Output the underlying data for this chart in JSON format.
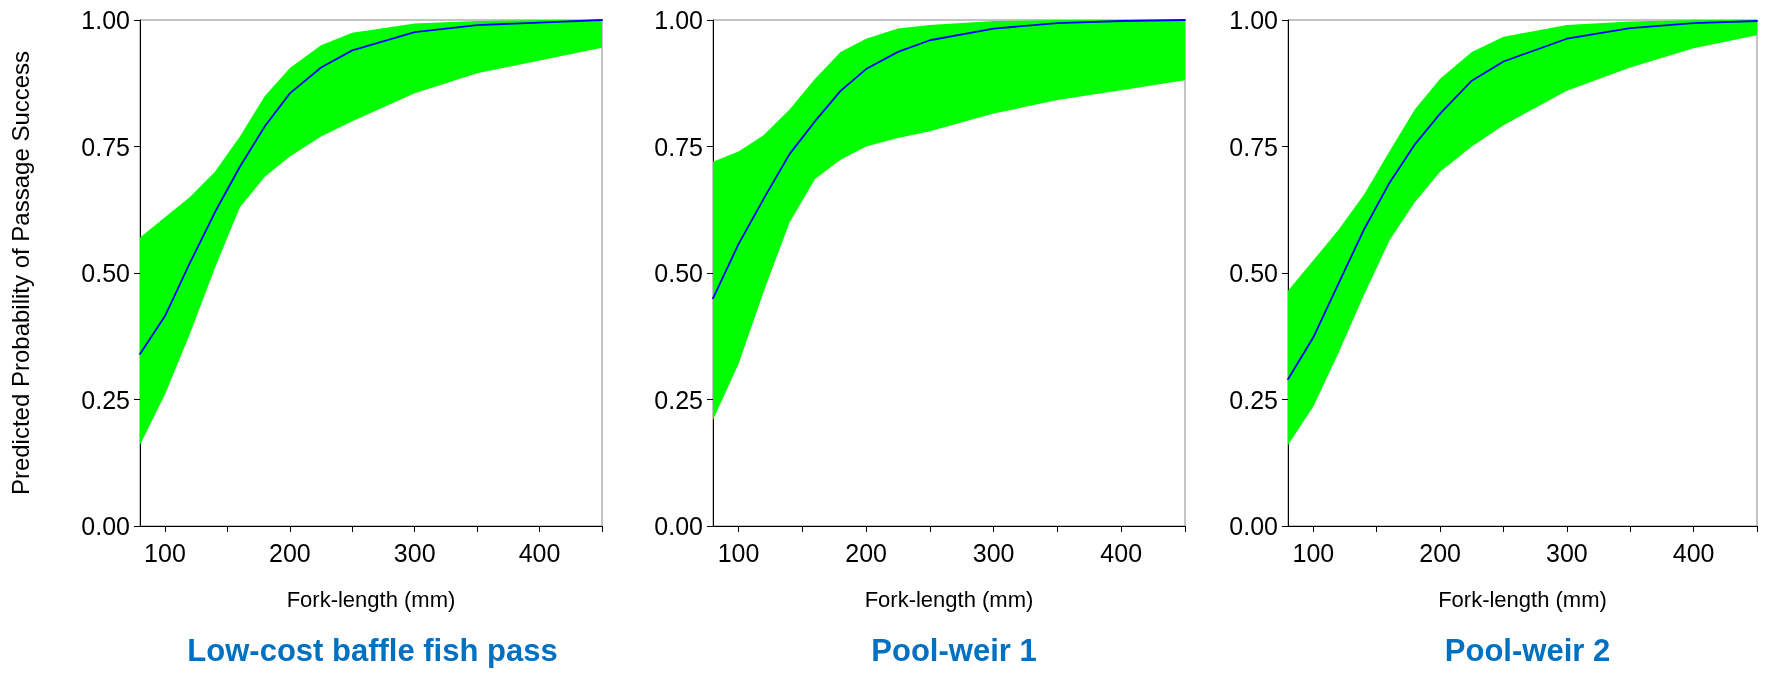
{
  "chart_data": [
    {
      "type": "line",
      "title": "Low-cost baffle fish pass",
      "xlabel": "Fork-length (mm)",
      "ylabel": "Predicted Probability of Passage Success",
      "x": [
        80,
        100,
        120,
        140,
        160,
        180,
        200,
        225,
        250,
        300,
        350,
        400,
        450
      ],
      "series": [
        {
          "color": "#0000ff",
          "values": [
            0.34,
            0.415,
            0.52,
            0.62,
            0.71,
            0.79,
            0.855,
            0.906,
            0.94,
            0.976,
            0.99,
            0.995,
            1.0
          ],
          "upper": [
            0.57,
            0.61,
            0.65,
            0.7,
            0.77,
            0.85,
            0.905,
            0.95,
            0.975,
            0.993,
            0.998,
            1.0,
            1.0
          ],
          "lower": [
            0.16,
            0.26,
            0.38,
            0.51,
            0.63,
            0.69,
            0.73,
            0.77,
            0.8,
            0.855,
            0.895,
            0.92,
            0.945
          ]
        }
      ],
      "xlim": [
        80,
        450
      ],
      "xticks": [
        100,
        {
          "value": 150,
          "label": null
        },
        200,
        {
          "value": 250,
          "label": null
        },
        300,
        {
          "value": 350,
          "label": null
        },
        400,
        {
          "value": 450,
          "label": null
        }
      ],
      "ylim": [
        0,
        1
      ],
      "yticks": [
        {
          "value": 0,
          "label": "0.00"
        },
        {
          "value": 0.25,
          "label": "0.25"
        },
        {
          "value": 0.5,
          "label": "0.50"
        },
        {
          "value": 0.75,
          "label": "0.75"
        },
        {
          "value": 1,
          "label": "1.00"
        }
      ],
      "grid": false,
      "marker": "none",
      "line_style": "solid"
    },
    {
      "type": "line",
      "title": "Pool-weir 1",
      "xlabel": "Fork-length (mm)",
      "x": [
        80,
        100,
        120,
        140,
        160,
        180,
        200,
        225,
        250,
        300,
        350,
        400,
        450
      ],
      "series": [
        {
          "color": "#0000ff",
          "values": [
            0.45,
            0.557,
            0.648,
            0.735,
            0.8,
            0.86,
            0.903,
            0.937,
            0.96,
            0.983,
            0.994,
            0.998,
            1.0
          ],
          "upper": [
            0.72,
            0.74,
            0.773,
            0.823,
            0.884,
            0.937,
            0.963,
            0.983,
            0.99,
            0.998,
            1.0,
            1.0,
            1.0
          ],
          "lower": [
            0.21,
            0.32,
            0.465,
            0.6,
            0.686,
            0.724,
            0.75,
            0.767,
            0.78,
            0.815,
            0.842,
            0.861,
            0.881
          ]
        }
      ],
      "xlim": [
        80,
        450
      ],
      "xticks": [
        100,
        {
          "value": 150,
          "label": null
        },
        200,
        {
          "value": 250,
          "label": null
        },
        300,
        {
          "value": 350,
          "label": null
        },
        400,
        {
          "value": 450,
          "label": null
        }
      ],
      "ylim": [
        0,
        1
      ],
      "yticks": [
        {
          "value": 0,
          "label": "0.00"
        },
        {
          "value": 0.25,
          "label": "0.25"
        },
        {
          "value": 0.5,
          "label": "0.50"
        },
        {
          "value": 0.75,
          "label": "0.75"
        },
        {
          "value": 1,
          "label": "1.00"
        }
      ],
      "grid": false,
      "marker": "none",
      "line_style": "solid"
    },
    {
      "type": "line",
      "title": "Pool-weir 2",
      "xlabel": "Fork-length (mm)",
      "x": [
        80,
        100,
        120,
        140,
        160,
        180,
        200,
        225,
        250,
        300,
        350,
        400,
        450
      ],
      "series": [
        {
          "color": "#0000ff",
          "values": [
            0.29,
            0.373,
            0.48,
            0.586,
            0.678,
            0.754,
            0.815,
            0.88,
            0.918,
            0.963,
            0.984,
            0.994,
            0.998
          ],
          "upper": [
            0.465,
            0.525,
            0.586,
            0.655,
            0.74,
            0.823,
            0.884,
            0.937,
            0.967,
            0.99,
            0.997,
            1.0,
            1.0
          ],
          "lower": [
            0.16,
            0.236,
            0.343,
            0.457,
            0.564,
            0.64,
            0.7,
            0.75,
            0.792,
            0.86,
            0.906,
            0.944,
            0.97
          ]
        }
      ],
      "xlim": [
        80,
        450
      ],
      "xticks": [
        100,
        {
          "value": 150,
          "label": null
        },
        200,
        {
          "value": 250,
          "label": null
        },
        300,
        {
          "value": 350,
          "label": null
        },
        400,
        {
          "value": 450,
          "label": null
        }
      ],
      "ylim": [
        0,
        1
      ],
      "yticks": [
        {
          "value": 0,
          "label": "0.00"
        },
        {
          "value": 0.25,
          "label": "0.25"
        },
        {
          "value": 0.5,
          "label": "0.50"
        },
        {
          "value": 0.75,
          "label": "0.75"
        },
        {
          "value": 1,
          "label": "1.00"
        }
      ],
      "grid": false,
      "marker": "none",
      "line_style": "solid"
    }
  ]
}
